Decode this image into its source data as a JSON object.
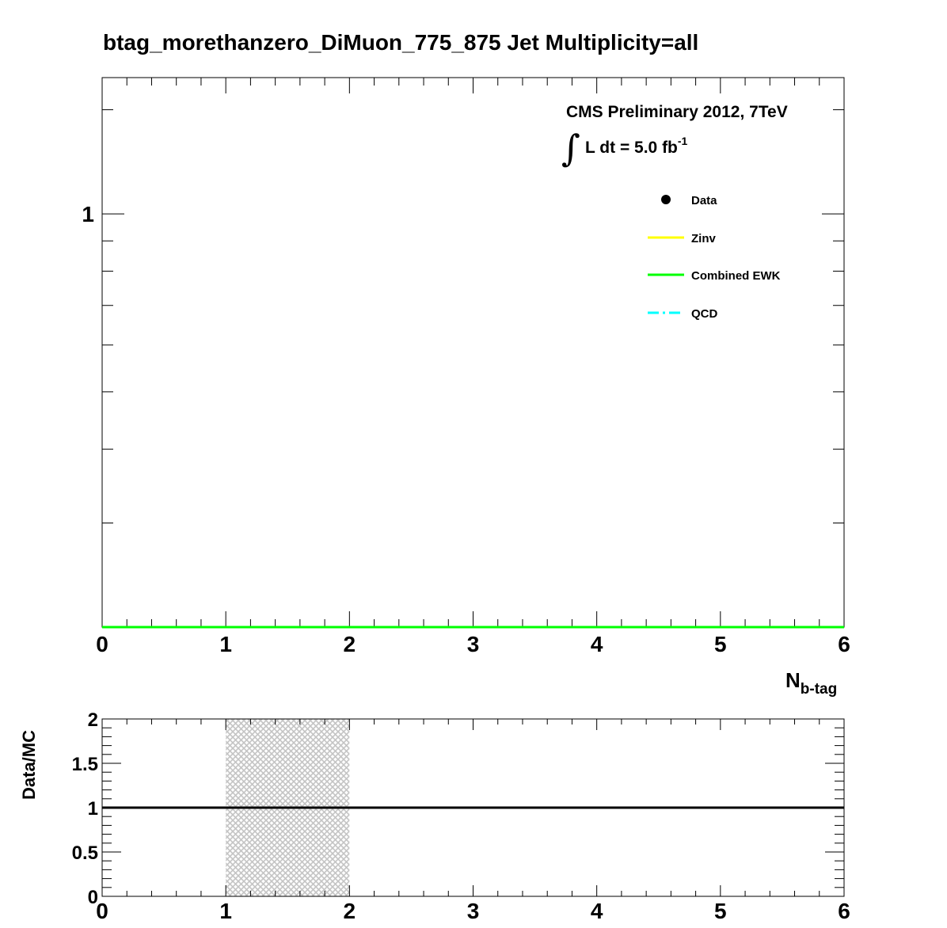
{
  "title": "btag_morethanzero_DiMuon_775_875    Jet Multiplicity=all",
  "annotation": {
    "experiment": "CMS Preliminary 2012, 7TeV",
    "integral_sign": "∫",
    "lumi_prefix": "L dt = 5.0 fb",
    "lumi_exponent": "-1"
  },
  "legend": [
    {
      "label": "Data",
      "style": "marker",
      "color": "#000000"
    },
    {
      "label": "Zinv",
      "style": "line",
      "color": "#ffff00"
    },
    {
      "label": "Combined EWK",
      "style": "line",
      "color": "#00ff00"
    },
    {
      "label": "QCD",
      "style": "dashdot",
      "color": "#00ffff"
    }
  ],
  "chart_data": [
    {
      "type": "line",
      "panel": "main",
      "title": "btag_morethanzero_DiMuon_775_875    Jet Multiplicity=all",
      "xlabel": "N",
      "xlabel_sub": "b-tag",
      "ylabel": "",
      "xlim": [
        0,
        6
      ],
      "x_ticks": [
        "0",
        "1",
        "2",
        "3",
        "4",
        "5",
        "6"
      ],
      "y_tick_labels": [
        {
          "value": 1,
          "label": "1"
        }
      ],
      "y_scale": "log",
      "ylim": [
        0.2,
        1.7
      ],
      "grid": false,
      "legend_position": "top-right",
      "series": [
        {
          "name": "Combined EWK",
          "color": "#00ff00",
          "x": [
            0,
            1,
            2,
            3,
            4,
            5,
            6
          ],
          "y": [
            0,
            0,
            0,
            0,
            0,
            0,
            0
          ]
        }
      ]
    },
    {
      "type": "line",
      "panel": "ratio",
      "xlabel": "",
      "ylabel": "Data/MC",
      "xlim": [
        0,
        6
      ],
      "ylim": [
        0,
        2
      ],
      "x_ticks": [
        "0",
        "1",
        "2",
        "3",
        "4",
        "5",
        "6"
      ],
      "y_ticks": [
        "0",
        "0.5",
        "1",
        "1.5",
        "2"
      ],
      "grid": false,
      "reference_line": 1,
      "uncertainty_band": {
        "x_range": [
          1,
          2
        ],
        "y_range": [
          0,
          2
        ],
        "color": "#c0c0c0"
      }
    }
  ]
}
